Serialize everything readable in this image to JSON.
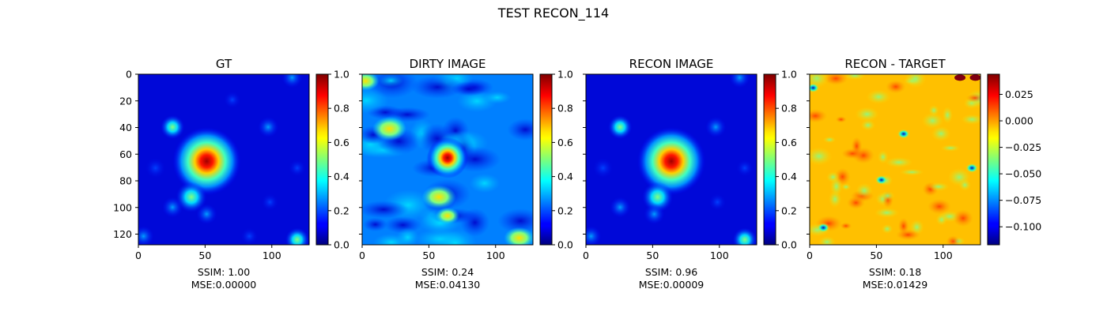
{
  "figure": {
    "title": "TEST RECON_114"
  },
  "chart_data": [
    {
      "type": "heatmap",
      "title": "GT",
      "x_ticks": [
        0,
        50,
        100
      ],
      "y_ticks": [
        0,
        20,
        40,
        60,
        80,
        100,
        120
      ],
      "xlim": [
        0,
        128
      ],
      "ylim": [
        128,
        0
      ],
      "colormap": "jet",
      "colorbar": {
        "range": [
          0.0,
          1.0
        ],
        "ticks": [
          "0.0",
          "0.2",
          "0.4",
          "0.6",
          "0.8",
          "1.0"
        ]
      },
      "caption": [
        "SSIM: 1.00",
        "MSE:0.00000"
      ]
    },
    {
      "type": "heatmap",
      "title": "DIRTY IMAGE",
      "x_ticks": [
        0,
        50,
        100
      ],
      "xlim": [
        0,
        128
      ],
      "ylim": [
        128,
        0
      ],
      "colormap": "jet",
      "colorbar": {
        "range": [
          0.0,
          1.0
        ],
        "ticks": [
          "0.0",
          "0.2",
          "0.4",
          "0.6",
          "0.8",
          "1.0"
        ]
      },
      "caption": [
        "SSIM: 0.24",
        "MSE:0.04130"
      ]
    },
    {
      "type": "heatmap",
      "title": "RECON IMAGE",
      "x_ticks": [
        0,
        50,
        100
      ],
      "xlim": [
        0,
        128
      ],
      "ylim": [
        128,
        0
      ],
      "colormap": "jet",
      "colorbar": {
        "range": [
          0.0,
          1.0
        ],
        "ticks": [
          "0.0",
          "0.2",
          "0.4",
          "0.6",
          "0.8",
          "1.0"
        ]
      },
      "caption": [
        "SSIM: 0.96",
        "MSE:0.00009"
      ]
    },
    {
      "type": "heatmap",
      "title": "RECON - TARGET",
      "x_ticks": [
        0,
        50,
        100
      ],
      "xlim": [
        0,
        128
      ],
      "ylim": [
        128,
        0
      ],
      "colormap": "jet",
      "colorbar": {
        "range": [
          -0.117,
          0.044
        ],
        "ticks": [
          "0.025",
          "0.000",
          "−0.025",
          "−0.050",
          "−0.075",
          "−0.100"
        ]
      },
      "caption": [
        "SSIM: 0.18",
        "MSE:0.01429"
      ]
    }
  ]
}
